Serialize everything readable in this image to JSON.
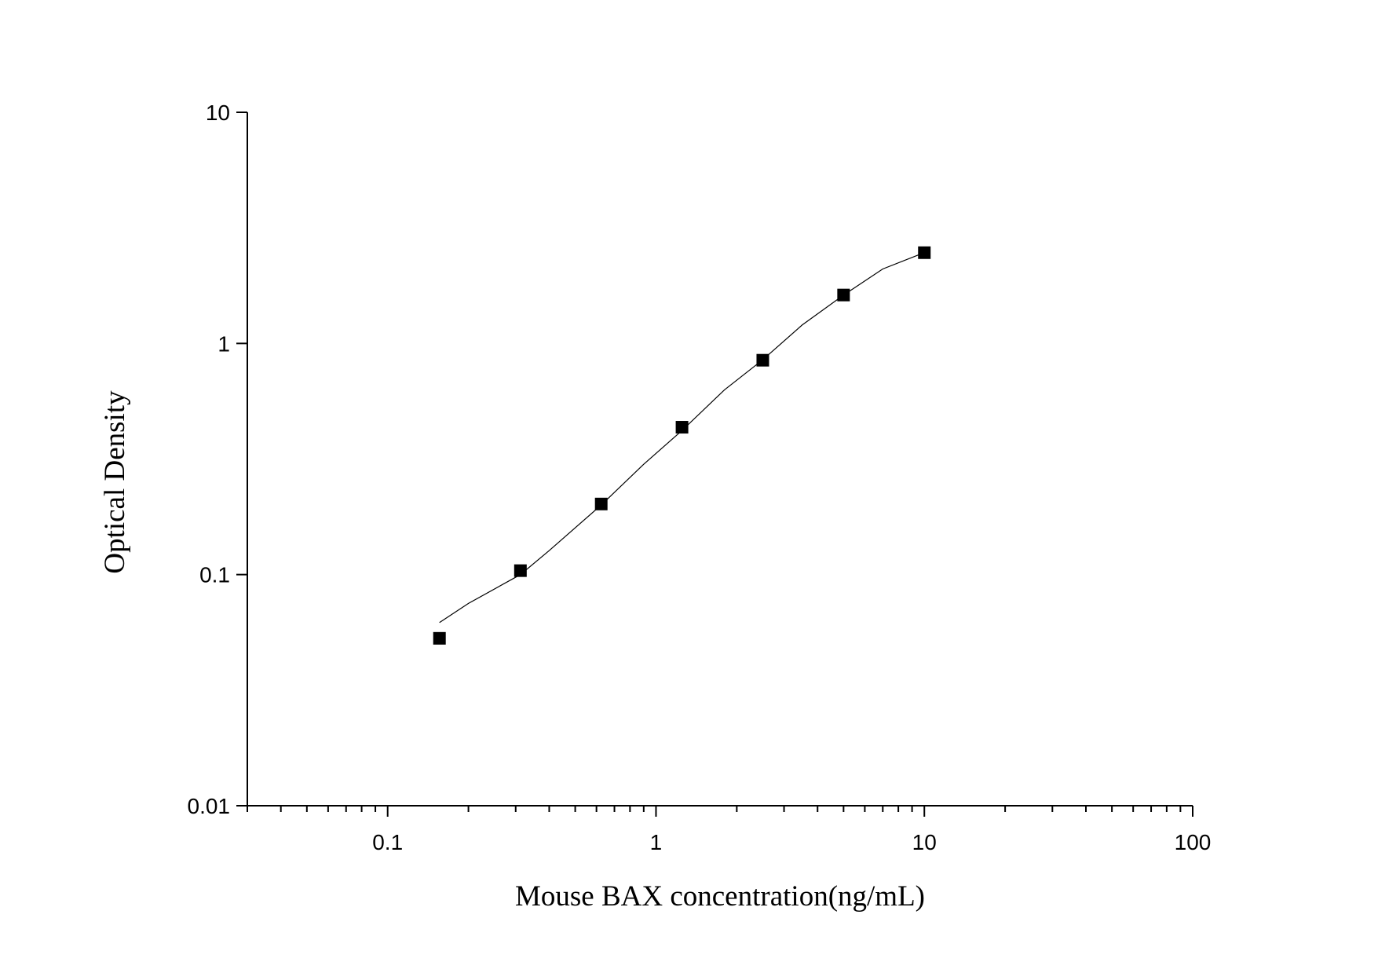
{
  "chart_data": {
    "type": "scatter",
    "x_label": "Mouse BAX concentration(ng/mL)",
    "y_label": "Optical Density",
    "x": [
      0.156,
      0.3125,
      0.625,
      1.25,
      2.5,
      5,
      10
    ],
    "series": [
      {
        "color": "#000000",
        "values": [
          0.053,
          0.104,
          0.202,
          0.434,
          0.846,
          1.62,
          2.47
        ]
      }
    ],
    "curve": {
      "color": "#000000",
      "x": [
        0.156,
        0.2,
        0.3125,
        0.4,
        0.625,
        0.9,
        1.25,
        1.8,
        2.5,
        3.5,
        5,
        7,
        10
      ],
      "values": [
        0.062,
        0.075,
        0.1,
        0.127,
        0.2,
        0.3,
        0.42,
        0.63,
        0.85,
        1.2,
        1.62,
        2.1,
        2.47
      ]
    },
    "xscale": "log",
    "yscale": "log",
    "xlim": [
      0.03,
      100
    ],
    "ylim": [
      0.01,
      10
    ],
    "xticks": [
      0.1,
      1,
      10,
      100
    ],
    "yticks": [
      0.01,
      0.1,
      1,
      10
    ],
    "minor_ticks": true,
    "grid": false
  }
}
